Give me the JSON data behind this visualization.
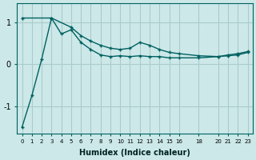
{
  "xlabel": "Humidex (Indice chaleur)",
  "bg_color": "#cce8e8",
  "grid_color": "#aacccc",
  "line_color": "#006060",
  "xticks": [
    0,
    1,
    2,
    3,
    4,
    5,
    6,
    7,
    8,
    9,
    10,
    11,
    12,
    13,
    14,
    15,
    16,
    18,
    20,
    21,
    22,
    23
  ],
  "xtick_labels": [
    "0",
    "1",
    "2",
    "3",
    "4",
    "5",
    "6",
    "7",
    "8",
    "9",
    "10",
    "11",
    "12",
    "13",
    "14",
    "15",
    "16",
    "18",
    "20",
    "21",
    "22",
    "23"
  ],
  "yticks": [
    -1,
    0,
    1
  ],
  "xlim": [
    -0.5,
    23.5
  ],
  "ylim": [
    -1.65,
    1.45
  ],
  "curve1_x": [
    0,
    1,
    2,
    3,
    4,
    5,
    6,
    7,
    8,
    9,
    10,
    11,
    12,
    13,
    14,
    15,
    16,
    18,
    20,
    21,
    22,
    23
  ],
  "curve1_y": [
    -1.5,
    -0.75,
    0.12,
    1.1,
    0.72,
    0.82,
    0.52,
    0.35,
    0.22,
    0.18,
    0.2,
    0.18,
    0.2,
    0.18,
    0.18,
    0.15,
    0.15,
    0.15,
    0.18,
    0.2,
    0.22,
    0.28
  ],
  "curve2_x": [
    0,
    3,
    5,
    6,
    7,
    8,
    9,
    10,
    11,
    12,
    13,
    14,
    15,
    16,
    18,
    20,
    21,
    22,
    23
  ],
  "curve2_y": [
    1.1,
    1.1,
    0.88,
    0.68,
    0.55,
    0.45,
    0.38,
    0.35,
    0.38,
    0.52,
    0.45,
    0.35,
    0.28,
    0.25,
    0.2,
    0.18,
    0.22,
    0.25,
    0.3
  ]
}
